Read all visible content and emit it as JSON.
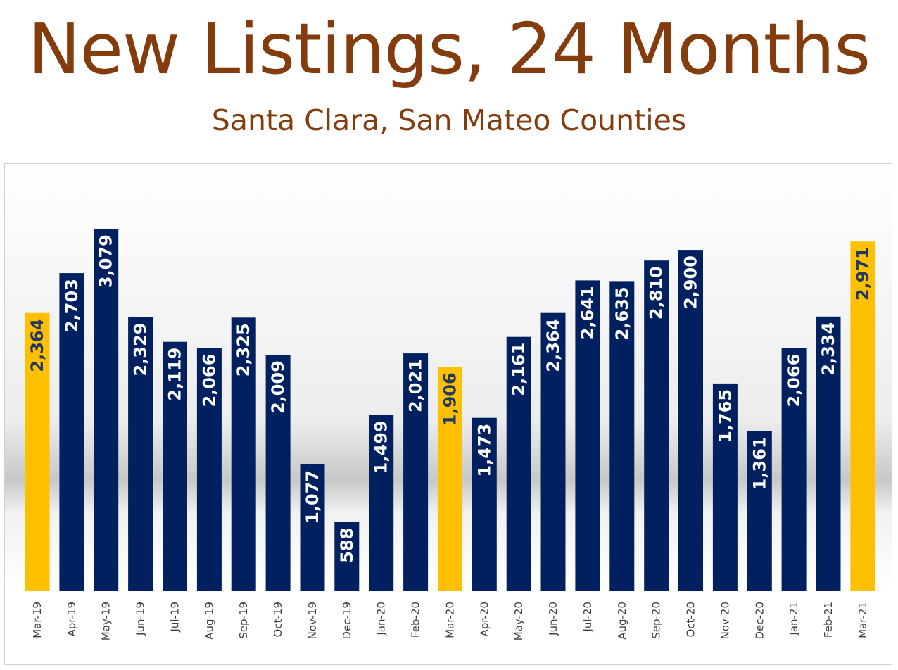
{
  "title": "New Listings, 24 Months",
  "subtitle": "Santa Clara, San Mateo Counties",
  "colors": {
    "title": "#843c0c",
    "bar_default": "#002060",
    "bar_highlight": "#ffc000",
    "label_on_default": "#ffffff",
    "label_on_highlight": "#1f3864"
  },
  "chart_data": {
    "type": "bar",
    "title": "New Listings, 24 Months",
    "subtitle": "Santa Clara, San Mateo Counties",
    "xlabel": "",
    "ylabel": "",
    "ylim": [
      0,
      3200
    ],
    "grid": false,
    "legend": "none",
    "categories": [
      "Mar-19",
      "Apr-19",
      "May-19",
      "Jun-19",
      "Jul-19",
      "Aug-19",
      "Sep-19",
      "Oct-19",
      "Nov-19",
      "Dec-19",
      "Jan-20",
      "Feb-20",
      "Mar-20",
      "Apr-20",
      "May-20",
      "Jun-20",
      "Jul-20",
      "Aug-20",
      "Sep-20",
      "Oct-20",
      "Nov-20",
      "Dec-20",
      "Jan-21",
      "Feb-21",
      "Mar-21"
    ],
    "values": [
      2364,
      2703,
      3079,
      2329,
      2119,
      2066,
      2325,
      2009,
      1077,
      588,
      1499,
      2021,
      1906,
      1473,
      2161,
      2364,
      2641,
      2635,
      2810,
      2900,
      1765,
      1361,
      2066,
      2334,
      2971
    ],
    "data_labels": [
      "2,364",
      "2,703",
      "3,079",
      "2,329",
      "2,119",
      "2,066",
      "2,325",
      "2,009",
      "1,077",
      "588",
      "1,499",
      "2,021",
      "1,906",
      "1,473",
      "2,161",
      "2,364",
      "2,641",
      "2,635",
      "2,810",
      "2,900",
      "1,765",
      "1,361",
      "2,066",
      "2,334",
      "2,971"
    ],
    "highlighted": [
      "Mar-19",
      "Mar-20",
      "Mar-21"
    ]
  }
}
